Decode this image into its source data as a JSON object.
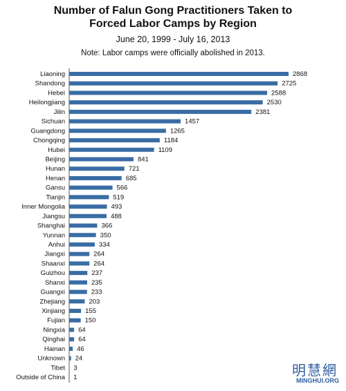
{
  "chart_data": {
    "type": "bar",
    "orientation": "horizontal",
    "title": "Number of Falun Gong Practitioners Taken to Forced Labor Camps by Region",
    "subtitle": "June 20, 1999 - July 16, 2013",
    "note": "Note: Labor camps were officially abolished in 2013.",
    "color": "#3a6da5",
    "categories": [
      "Liaoning",
      "Shandong",
      "Hebei",
      "Heilongjiang",
      "Jilin",
      "Sichuan",
      "Guangdong",
      "Chongqing",
      "Hubei",
      "Beijing",
      "Hunan",
      "Henan",
      "Gansu",
      "Tianjin",
      "Inner Mongolia",
      "Jiangsu",
      "Shanghai",
      "Yunnan",
      "Anhui",
      "Jiangxi",
      "Shaanxi",
      "Guizhou",
      "Shanxi",
      "Guangxi",
      "Zhejiang",
      "Xinjiang",
      "Fujian",
      "Ningxia",
      "Qinghai",
      "Hainan",
      "Unknown",
      "Tibet",
      "Outside of China"
    ],
    "values": [
      2868,
      2725,
      2588,
      2530,
      2381,
      1457,
      1265,
      1184,
      1109,
      841,
      721,
      685,
      566,
      519,
      493,
      488,
      366,
      350,
      334,
      264,
      264,
      237,
      235,
      233,
      203,
      155,
      150,
      64,
      64,
      46,
      24,
      3,
      1
    ]
  },
  "logo": {
    "chinese": "明慧網",
    "url": "MINGHUI.ORG"
  }
}
